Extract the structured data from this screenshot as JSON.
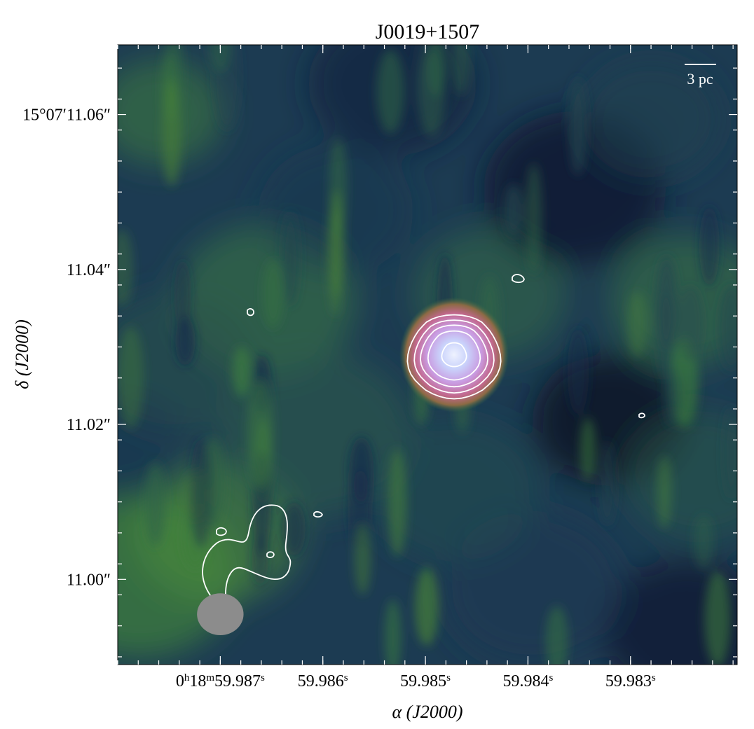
{
  "chart_data": {
    "type": "heatmap",
    "title": "J0019+1507",
    "xlabel": "α (J2000)",
    "ylabel": "δ (J2000)",
    "x_ticks": [
      {
        "value": 59.987,
        "label": "0h18m59.987s",
        "parts": {
          "h": "0",
          "m": "18",
          "s": "59.987"
        }
      },
      {
        "value": 59.986,
        "label": "59.986s",
        "parts": {
          "h": "",
          "m": "",
          "s": "59.986"
        }
      },
      {
        "value": 59.985,
        "label": "59.985s",
        "parts": {
          "h": "",
          "m": "",
          "s": "59.985"
        }
      },
      {
        "value": 59.984,
        "label": "59.984s",
        "parts": {
          "h": "",
          "m": "",
          "s": "59.984"
        }
      },
      {
        "value": 59.983,
        "label": "59.983s",
        "parts": {
          "h": "",
          "m": "",
          "s": "59.983"
        }
      }
    ],
    "y_ticks": [
      {
        "value": 11.06,
        "label": "15°07′11.06″"
      },
      {
        "value": 11.04,
        "label": "11.04″"
      },
      {
        "value": 11.02,
        "label": "11.02″"
      },
      {
        "value": 11.0,
        "label": "11.00″"
      }
    ],
    "xlim": [
      59.988,
      59.98196
    ],
    "ylim": [
      10.989,
      11.069
    ],
    "scale_bar_label": "3 pc",
    "peak": {
      "ra": 59.98472,
      "dec": 11.029
    },
    "beam": {
      "ra": 59.987,
      "dec": 10.9955,
      "major_arcsec": 0.006,
      "minor_arcsec": 0.0054
    },
    "colormap": [
      "#0b1533",
      "#1d3a5c",
      "#2a5a54",
      "#3f8040",
      "#9a6a46",
      "#c76688",
      "#cf8fd6",
      "#e7e8ff"
    ],
    "contour_color": "#ffffff",
    "beam_color": "#8c8c8c"
  }
}
